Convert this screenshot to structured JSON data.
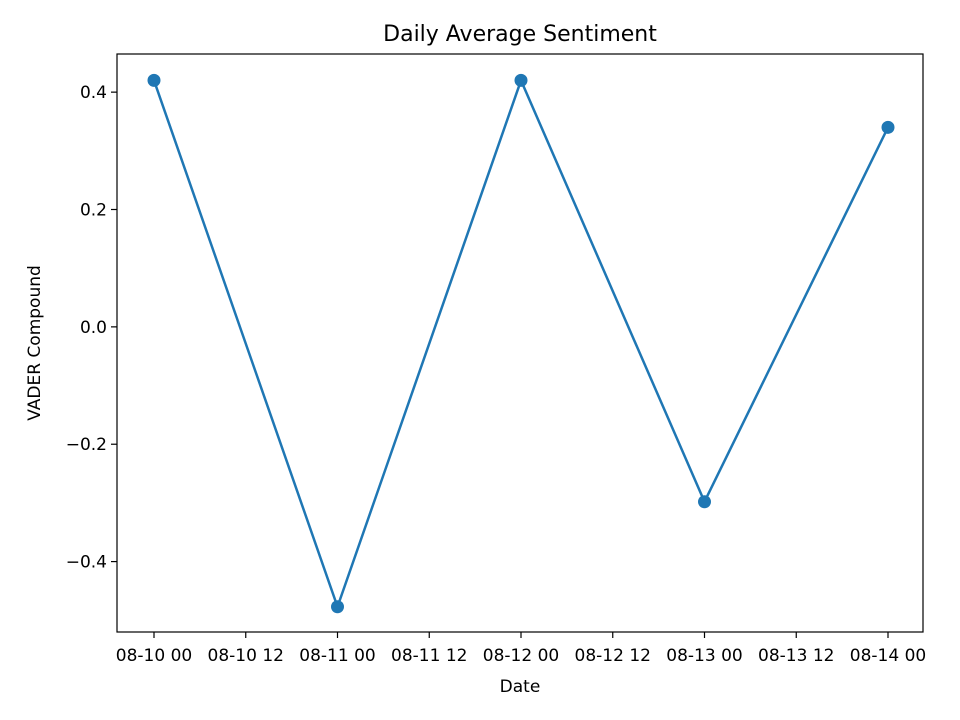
{
  "chart_data": {
    "type": "line",
    "title": "Daily Average Sentiment",
    "xlabel": "Date",
    "ylabel": "VADER Compound",
    "x_tick_labels": [
      "08-10 00",
      "08-10 12",
      "08-11 00",
      "08-11 12",
      "08-12 00",
      "08-12 12",
      "08-13 00",
      "08-13 12",
      "08-14 00"
    ],
    "y_tick_labels": [
      "−0.4",
      "−0.2",
      "0.0",
      "0.2",
      "0.4"
    ],
    "y_ticks": [
      -0.4,
      -0.2,
      0.0,
      0.2,
      0.4
    ],
    "ylim": [
      -0.52,
      0.465
    ],
    "xlim": [
      "08-10 00",
      "08-14 00"
    ],
    "grid": false,
    "series": [
      {
        "color": "#1f77b4",
        "marker": "circle",
        "x": [
          "08-10",
          "08-11",
          "08-12",
          "08-13",
          "08-14"
        ],
        "values": [
          0.42,
          -0.477,
          0.42,
          -0.298,
          0.34
        ]
      }
    ]
  }
}
